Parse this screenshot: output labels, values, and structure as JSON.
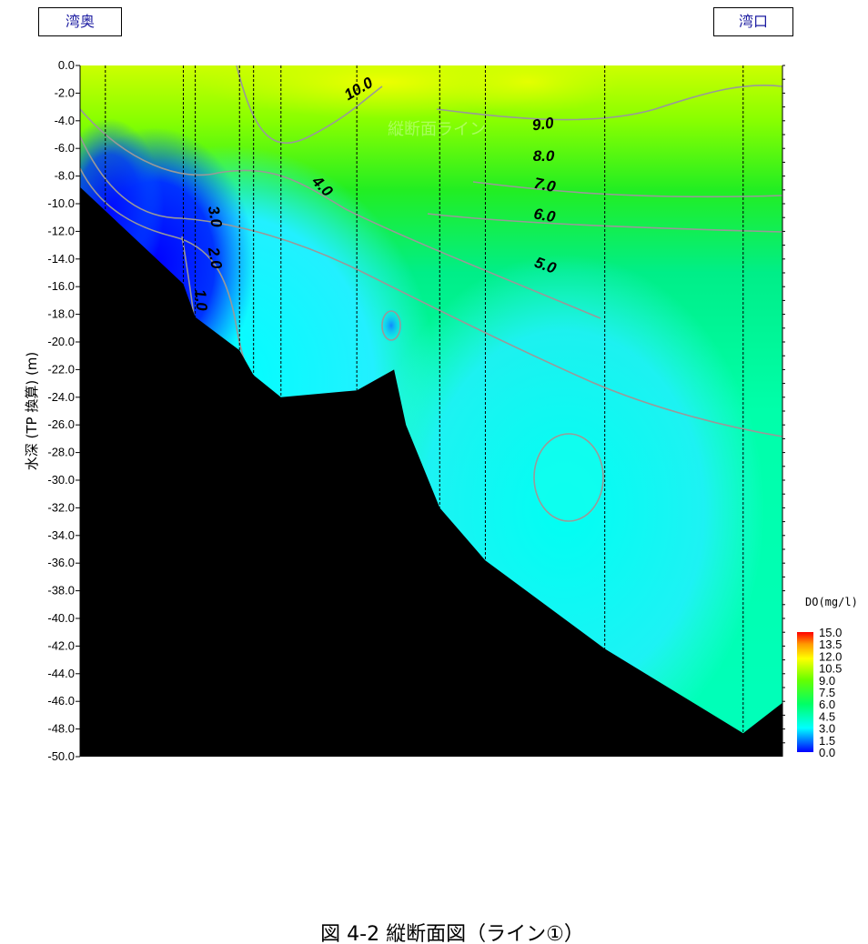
{
  "stations": {
    "left": "湾奥",
    "right": "湾口"
  },
  "caption": "図 4-2 縦断面図（ライン①）",
  "watermark": "縦断面ライン",
  "colorbar": {
    "title": "DO(mg/l)",
    "ticks": [
      "15.0",
      "13.5",
      "12.0",
      "10.5",
      "9.0",
      "7.5",
      "6.0",
      "4.5",
      "3.0",
      "1.5",
      "0.0"
    ]
  },
  "chart_data": {
    "type": "heatmap",
    "ylabel": "水深 (TP 換算) (m)",
    "ylim": [
      -50,
      0
    ],
    "yticks": [
      "0.0",
      "-2.0",
      "-4.0",
      "-6.0",
      "-8.0",
      "-10.0",
      "-12.0",
      "-14.0",
      "-16.0",
      "-18.0",
      "-20.0",
      "-22.0",
      "-24.0",
      "-26.0",
      "-28.0",
      "-30.0",
      "-32.0",
      "-34.0",
      "-36.0",
      "-38.0",
      "-40.0",
      "-42.0",
      "-44.0",
      "-46.0",
      "-48.0",
      "-50.0"
    ],
    "color_scale": {
      "min": 0,
      "max": 15,
      "unit": "mg/l"
    },
    "colors": {
      "low": "#0000ff",
      "mid_low": "#00ffff",
      "mid": "#00ff66",
      "mid_high": "#66ff00",
      "high": "#ffff00",
      "max": "#ff0000",
      "seabed": "#000000"
    },
    "contour_labels": [
      {
        "text": "10.0",
        "x": 0.4,
        "depth": -2.0,
        "rot": -30
      },
      {
        "text": "9.0",
        "x": 0.66,
        "depth": -4.6,
        "rot": -8
      },
      {
        "text": "8.0",
        "x": 0.66,
        "depth": -6.9,
        "rot": 0
      },
      {
        "text": "7.0",
        "x": 0.66,
        "depth": -9.0,
        "rot": 12
      },
      {
        "text": "6.0",
        "x": 0.66,
        "depth": -11.2,
        "rot": 10
      },
      {
        "text": "5.0",
        "x": 0.66,
        "depth": -14.8,
        "rot": 20
      },
      {
        "text": "4.0",
        "x": 0.34,
        "depth": -9.0,
        "rot": 45
      },
      {
        "text": "3.0",
        "x": 0.185,
        "depth": -11.0,
        "rot": 80
      },
      {
        "text": "2.0",
        "x": 0.185,
        "depth": -14.0,
        "rot": 80
      },
      {
        "text": "1.0",
        "x": 0.165,
        "depth": -17.0,
        "rot": 85
      }
    ],
    "station_x": [
      0.036,
      0.147,
      0.164,
      0.227,
      0.247,
      0.286,
      0.394,
      0.512,
      0.577,
      0.747,
      0.944
    ],
    "seabed_profile": [
      [
        0.0,
        -8.8
      ],
      [
        0.147,
        -15.8
      ],
      [
        0.164,
        -18.2
      ],
      [
        0.227,
        -20.6
      ],
      [
        0.247,
        -22.4
      ],
      [
        0.286,
        -24.0
      ],
      [
        0.394,
        -23.5
      ],
      [
        0.447,
        -22.0
      ],
      [
        0.464,
        -26.0
      ],
      [
        0.512,
        -32.0
      ],
      [
        0.577,
        -35.8
      ],
      [
        0.747,
        -42.2
      ],
      [
        0.944,
        -48.3
      ],
      [
        1.0,
        -46.1
      ]
    ]
  }
}
